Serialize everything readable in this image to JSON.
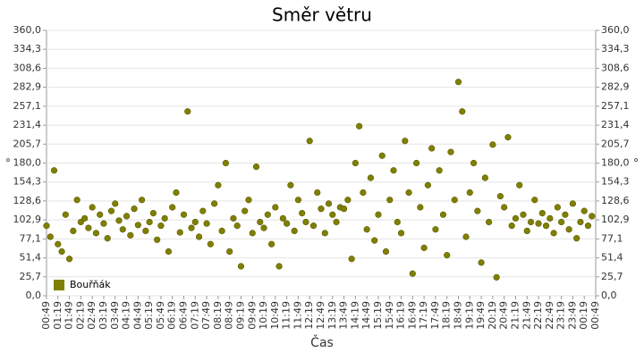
{
  "chart_data": {
    "type": "scatter",
    "title": "Směr větru",
    "x_label": "Čas",
    "y_label": "°",
    "y2_label": "°",
    "xlim": [
      0,
      1440
    ],
    "xticks": [
      {
        "value": 0,
        "label": "00:49"
      },
      {
        "value": 30,
        "label": "01:19"
      },
      {
        "value": 60,
        "label": "01:49"
      },
      {
        "value": 90,
        "label": "02:19"
      },
      {
        "value": 120,
        "label": "02:49"
      },
      {
        "value": 150,
        "label": "03:19"
      },
      {
        "value": 180,
        "label": "03:49"
      },
      {
        "value": 210,
        "label": "04:19"
      },
      {
        "value": 240,
        "label": "04:49"
      },
      {
        "value": 270,
        "label": "05:19"
      },
      {
        "value": 300,
        "label": "05:49"
      },
      {
        "value": 330,
        "label": "06:19"
      },
      {
        "value": 360,
        "label": "06:49"
      },
      {
        "value": 390,
        "label": "07:19"
      },
      {
        "value": 420,
        "label": "07:49"
      },
      {
        "value": 450,
        "label": "08:19"
      },
      {
        "value": 480,
        "label": "08:49"
      },
      {
        "value": 510,
        "label": "09:19"
      },
      {
        "value": 540,
        "label": "09:49"
      },
      {
        "value": 570,
        "label": "10:19"
      },
      {
        "value": 600,
        "label": "10:49"
      },
      {
        "value": 630,
        "label": "11:19"
      },
      {
        "value": 660,
        "label": "11:49"
      },
      {
        "value": 690,
        "label": "12:19"
      },
      {
        "value": 720,
        "label": "12:49"
      },
      {
        "value": 750,
        "label": "13:19"
      },
      {
        "value": 780,
        "label": "13:49"
      },
      {
        "value": 810,
        "label": "14:19"
      },
      {
        "value": 840,
        "label": "14:49"
      },
      {
        "value": 870,
        "label": "15:19"
      },
      {
        "value": 900,
        "label": "15:49"
      },
      {
        "value": 930,
        "label": "16:19"
      },
      {
        "value": 960,
        "label": "16:49"
      },
      {
        "value": 990,
        "label": "17:19"
      },
      {
        "value": 1020,
        "label": "17:49"
      },
      {
        "value": 1050,
        "label": "18:19"
      },
      {
        "value": 1080,
        "label": "18:49"
      },
      {
        "value": 1110,
        "label": "19:19"
      },
      {
        "value": 1140,
        "label": "19:49"
      },
      {
        "value": 1170,
        "label": "20:19"
      },
      {
        "value": 1200,
        "label": "20:49"
      },
      {
        "value": 1230,
        "label": "21:19"
      },
      {
        "value": 1260,
        "label": "21:49"
      },
      {
        "value": 1290,
        "label": "22:19"
      },
      {
        "value": 1320,
        "label": "22:49"
      },
      {
        "value": 1350,
        "label": "23:19"
      },
      {
        "value": 1380,
        "label": "23:49"
      },
      {
        "value": 1410,
        "label": "00:19"
      },
      {
        "value": 1440,
        "label": "00:49"
      }
    ],
    "ylim": [
      0,
      360
    ],
    "yticks": [
      {
        "value": 0,
        "label": "0,0"
      },
      {
        "value": 25.7,
        "label": "25,7"
      },
      {
        "value": 51.4,
        "label": "51,4"
      },
      {
        "value": 77.1,
        "label": "77,1"
      },
      {
        "value": 102.9,
        "label": "102,9"
      },
      {
        "value": 128.6,
        "label": "128,6"
      },
      {
        "value": 154.3,
        "label": "154,3"
      },
      {
        "value": 180,
        "label": "180,0"
      },
      {
        "value": 205.7,
        "label": "205,7"
      },
      {
        "value": 231.4,
        "label": "231,4"
      },
      {
        "value": 257.1,
        "label": "257,1"
      },
      {
        "value": 282.9,
        "label": "282,9"
      },
      {
        "value": 308.6,
        "label": "308,6"
      },
      {
        "value": 334.3,
        "label": "334,3"
      },
      {
        "value": 360,
        "label": "360,0"
      }
    ],
    "grid": true,
    "legend": "lower-left",
    "series": [
      {
        "name": "Bouřňák",
        "color": "#808000",
        "x": [
          0,
          10,
          20,
          30,
          40,
          50,
          60,
          70,
          80,
          90,
          100,
          110,
          120,
          130,
          140,
          150,
          160,
          170,
          180,
          190,
          200,
          210,
          220,
          230,
          240,
          250,
          260,
          270,
          280,
          290,
          300,
          310,
          320,
          330,
          340,
          350,
          360,
          370,
          380,
          390,
          400,
          410,
          420,
          430,
          440,
          450,
          460,
          470,
          480,
          490,
          500,
          510,
          520,
          530,
          540,
          550,
          560,
          570,
          580,
          590,
          600,
          610,
          620,
          630,
          640,
          650,
          660,
          670,
          680,
          690,
          700,
          710,
          720,
          730,
          740,
          750,
          760,
          770,
          780,
          790,
          800,
          810,
          820,
          830,
          840,
          850,
          860,
          870,
          880,
          890,
          900,
          910,
          920,
          930,
          940,
          950,
          960,
          970,
          980,
          990,
          1000,
          1010,
          1020,
          1030,
          1040,
          1050,
          1060,
          1070,
          1080,
          1090,
          1100,
          1110,
          1120,
          1130,
          1140,
          1150,
          1160,
          1170,
          1180,
          1190,
          1200,
          1210,
          1220,
          1230,
          1240,
          1250,
          1260,
          1270,
          1280,
          1290,
          1300,
          1310,
          1320,
          1330,
          1340,
          1350,
          1360,
          1370,
          1380,
          1390,
          1400,
          1410,
          1420,
          1430
        ],
        "values": [
          95,
          80,
          170,
          70,
          60,
          110,
          50,
          88,
          130,
          100,
          105,
          92,
          120,
          85,
          110,
          98,
          78,
          115,
          125,
          102,
          90,
          108,
          82,
          118,
          96,
          130,
          88,
          100,
          112,
          76,
          95,
          105,
          60,
          120,
          140,
          86,
          110,
          250,
          92,
          100,
          80,
          115,
          98,
          70,
          125,
          150,
          88,
          180,
          60,
          105,
          95,
          40,
          115,
          130,
          85,
          175,
          100,
          92,
          110,
          70,
          120,
          40,
          105,
          98,
          150,
          88,
          130,
          112,
          100,
          210,
          95,
          140,
          118,
          85,
          125,
          110,
          100,
          120,
          118,
          130,
          50,
          180,
          230,
          140,
          90,
          160,
          75,
          110,
          190,
          60,
          130,
          170,
          100,
          85,
          210,
          140,
          30,
          180,
          120,
          65,
          150,
          200,
          90,
          170,
          110,
          55,
          195,
          130,
          290,
          250,
          80,
          140,
          180,
          115,
          45,
          160,
          100,
          205,
          25,
          135,
          120,
          215,
          95,
          105,
          150,
          110,
          88,
          100,
          130,
          98,
          112,
          95,
          105,
          85,
          120,
          100,
          110,
          90,
          125,
          78,
          100,
          115,
          95,
          108
        ]
      }
    ]
  }
}
